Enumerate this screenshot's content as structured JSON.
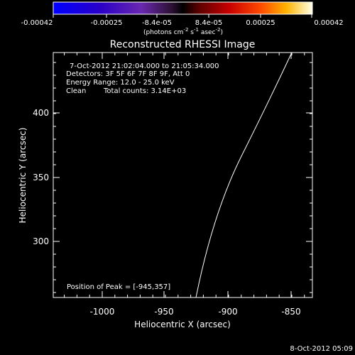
{
  "colorbar": {
    "ticks": [
      "-0.00042",
      "-0.00025",
      "-8.4e-05",
      "8.4e-05",
      "0.00025",
      "0.00042"
    ],
    "tick_values": [
      -0.00042,
      -0.00025,
      -8.4e-05,
      8.4e-05,
      0.00025,
      0.00042
    ],
    "units_pre": "(photons cm",
    "units_sup1": "-2",
    "units_mid": " s",
    "units_sup2": "-1",
    "units_post": " asec",
    "units_sup3": "-2",
    "units_close": ")"
  },
  "title": "Reconstructed RHESSI Image",
  "info": {
    "time_range": "7-Oct-2012 21:02:04.000 to 21:05:34.000",
    "detectors": "Detectors: 3F 5F 6F 7F 8F 9F, Att 0",
    "energy": "Energy Range: 12.0 - 25.0 keV",
    "clean": "Clean",
    "total_counts": "Total counts: 3.14E+03"
  },
  "peak_label": "Position of Peak = [-945,357]",
  "axes": {
    "xlabel": "Heliocentric X (arcsec)",
    "ylabel": "Heliocentric Y (arcsec)",
    "xticks": [
      "-1000",
      "-950",
      "-900",
      "-850"
    ],
    "xtick_values": [
      -1000,
      -950,
      -900,
      -850
    ],
    "yticks": [
      "300",
      "350",
      "400"
    ],
    "ytick_values": [
      300,
      350,
      400
    ],
    "xlim": [
      -1036,
      -840
    ],
    "ylim": [
      253,
      436
    ]
  },
  "peak_position": [
    -945,
    357
  ],
  "footer_date": "8-Oct-2012 05:09"
}
